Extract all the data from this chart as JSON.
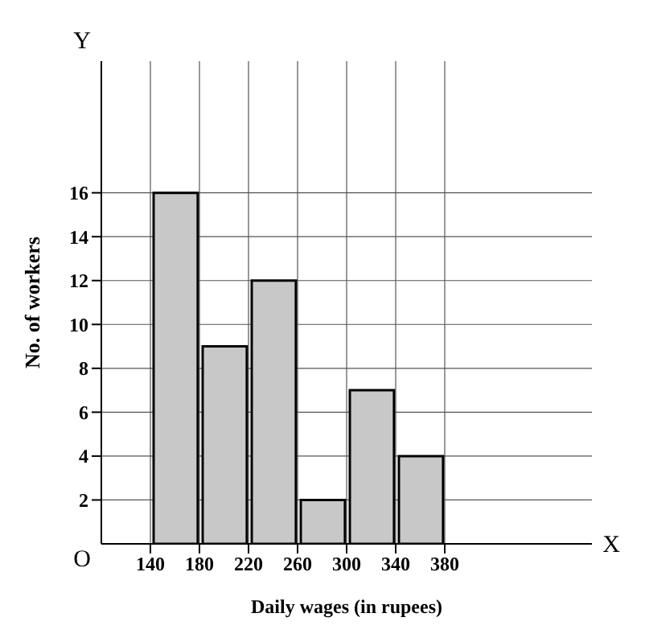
{
  "chart_data": {
    "type": "histogram",
    "xlabel": "Daily wages (in rupees)",
    "ylabel": "No. of workers",
    "bins": [
      140,
      180,
      220,
      260,
      300,
      340,
      380
    ],
    "values": [
      16,
      9,
      12,
      2,
      7,
      4
    ],
    "color": "#c8c8c8",
    "xlim": [
      100,
      500
    ],
    "xticks": [
      140,
      180,
      220,
      260,
      300,
      340,
      380
    ],
    "ylim": [
      0,
      22
    ],
    "yticks": [
      2,
      4,
      6,
      8,
      10,
      12,
      14,
      16
    ],
    "grid": true,
    "annotations": [
      "Y",
      "X",
      "O"
    ]
  }
}
